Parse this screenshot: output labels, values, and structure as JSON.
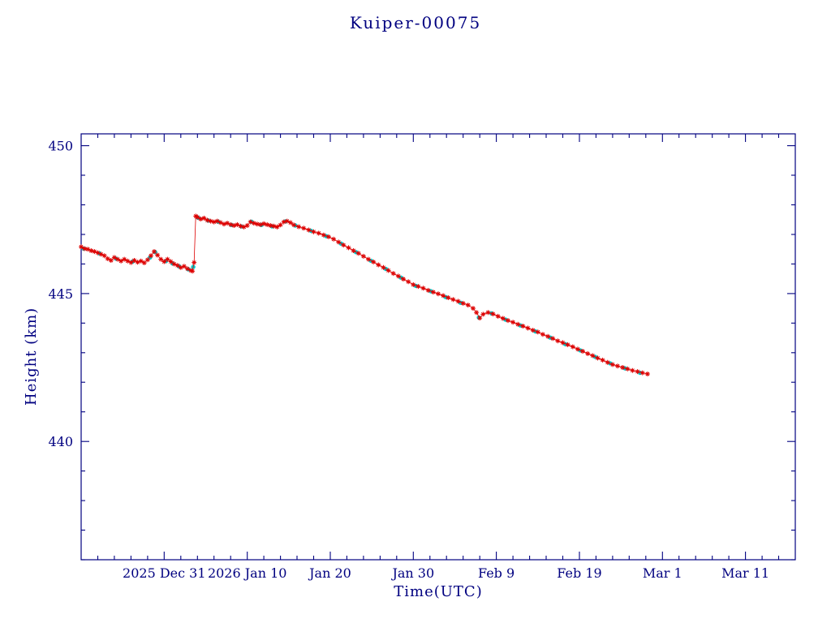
{
  "chart": {
    "title": "Kuiper-00075",
    "xlabel": "Time(UTC)",
    "ylabel": "Height (km)",
    "colors": {
      "axis": "#000080",
      "text": "#000080",
      "red_series": "#dd0000",
      "cyan_series": "#00cccc",
      "background": "#ffffff"
    }
  },
  "chart_data": {
    "type": "line",
    "title": "Kuiper-00075",
    "xlabel": "Time(UTC)",
    "ylabel": "Height (km)",
    "x_unit": "days (x axis labeled by calendar date, ticks every 10 days)",
    "xlim": [
      0,
      86
    ],
    "ylim": [
      436.0,
      450.4
    ],
    "grid": false,
    "legend": "none",
    "x_ticks": [
      {
        "day": 10,
        "label": "2025 Dec 31"
      },
      {
        "day": 20,
        "label": "2026 Jan 10"
      },
      {
        "day": 30,
        "label": "Jan 20"
      },
      {
        "day": 40,
        "label": "Jan 30"
      },
      {
        "day": 50,
        "label": "Feb 9"
      },
      {
        "day": 60,
        "label": "Feb 19"
      },
      {
        "day": 70,
        "label": "Mar 1"
      },
      {
        "day": 80,
        "label": "Mar 11"
      }
    ],
    "y_ticks": [
      {
        "value": 450,
        "label": "450"
      },
      {
        "value": 445,
        "label": "445"
      },
      {
        "value": 440,
        "label": "440"
      }
    ],
    "x_minor_step": 2,
    "y_minor_step": 1,
    "series": [
      {
        "name": "height-cyan-dots",
        "marker": "dot",
        "color": "#00cccc",
        "line": false,
        "points": [
          [
            0.3,
            446.52
          ],
          [
            2.2,
            446.36
          ],
          [
            4.2,
            446.18
          ],
          [
            6.2,
            446.08
          ],
          [
            8.3,
            446.22
          ],
          [
            8.9,
            446.4
          ],
          [
            10.2,
            446.1
          ],
          [
            11.0,
            446.02
          ],
          [
            11.8,
            445.92
          ],
          [
            12.9,
            445.82
          ],
          [
            13.5,
            445.9
          ],
          [
            14.1,
            447.56
          ],
          [
            15.3,
            447.47
          ],
          [
            16.5,
            447.43
          ],
          [
            18.1,
            447.32
          ],
          [
            19.3,
            447.27
          ],
          [
            20.5,
            447.43
          ],
          [
            21.7,
            447.32
          ],
          [
            23.0,
            447.27
          ],
          [
            24.6,
            447.44
          ],
          [
            25.8,
            447.3
          ],
          [
            27.7,
            447.12
          ],
          [
            29.5,
            446.94
          ],
          [
            31.3,
            446.69
          ],
          [
            33.1,
            446.4
          ],
          [
            34.9,
            446.11
          ],
          [
            36.7,
            445.83
          ],
          [
            38.5,
            445.54
          ],
          [
            40.3,
            445.26
          ],
          [
            42.1,
            445.08
          ],
          [
            43.9,
            444.88
          ],
          [
            45.7,
            444.69
          ],
          [
            47.9,
            444.19
          ],
          [
            49.4,
            444.33
          ],
          [
            51.1,
            444.12
          ],
          [
            52.9,
            443.92
          ],
          [
            54.7,
            443.72
          ],
          [
            56.5,
            443.51
          ],
          [
            58.3,
            443.29
          ],
          [
            60.1,
            443.08
          ],
          [
            61.9,
            442.86
          ],
          [
            63.7,
            442.64
          ],
          [
            65.5,
            442.47
          ],
          [
            67.3,
            442.32
          ]
        ]
      },
      {
        "name": "height-red-asterisks",
        "marker": "asterisk",
        "color": "#dd0000",
        "line": true,
        "points": [
          [
            0.0,
            446.58
          ],
          [
            0.4,
            446.52
          ],
          [
            0.8,
            446.5
          ],
          [
            1.2,
            446.45
          ],
          [
            1.6,
            446.42
          ],
          [
            2.0,
            446.38
          ],
          [
            2.4,
            446.33
          ],
          [
            2.8,
            446.28
          ],
          [
            3.2,
            446.18
          ],
          [
            3.6,
            446.12
          ],
          [
            4.0,
            446.22
          ],
          [
            4.4,
            446.16
          ],
          [
            4.8,
            446.1
          ],
          [
            5.2,
            446.16
          ],
          [
            5.6,
            446.1
          ],
          [
            6.0,
            446.05
          ],
          [
            6.4,
            446.12
          ],
          [
            6.8,
            446.06
          ],
          [
            7.2,
            446.1
          ],
          [
            7.6,
            446.04
          ],
          [
            8.0,
            446.14
          ],
          [
            8.4,
            446.28
          ],
          [
            8.8,
            446.42
          ],
          [
            9.2,
            446.3
          ],
          [
            9.6,
            446.16
          ],
          [
            10.0,
            446.08
          ],
          [
            10.4,
            446.16
          ],
          [
            10.8,
            446.08
          ],
          [
            11.2,
            446.0
          ],
          [
            11.6,
            445.95
          ],
          [
            12.0,
            445.88
          ],
          [
            12.4,
            445.92
          ],
          [
            12.8,
            445.84
          ],
          [
            13.2,
            445.78
          ],
          [
            13.4,
            445.76
          ],
          [
            13.6,
            446.05
          ],
          [
            13.8,
            447.62
          ],
          [
            14.0,
            447.58
          ],
          [
            14.4,
            447.52
          ],
          [
            14.8,
            447.55
          ],
          [
            15.2,
            447.48
          ],
          [
            15.6,
            447.45
          ],
          [
            16.0,
            447.42
          ],
          [
            16.4,
            447.45
          ],
          [
            16.8,
            447.4
          ],
          [
            17.2,
            447.35
          ],
          [
            17.6,
            447.38
          ],
          [
            18.0,
            447.33
          ],
          [
            18.4,
            447.3
          ],
          [
            18.8,
            447.33
          ],
          [
            19.2,
            447.28
          ],
          [
            19.6,
            447.25
          ],
          [
            20.0,
            447.3
          ],
          [
            20.4,
            447.42
          ],
          [
            20.8,
            447.38
          ],
          [
            21.2,
            447.35
          ],
          [
            21.6,
            447.33
          ],
          [
            22.0,
            447.36
          ],
          [
            22.4,
            447.33
          ],
          [
            22.8,
            447.3
          ],
          [
            23.2,
            447.28
          ],
          [
            23.6,
            447.25
          ],
          [
            24.0,
            447.32
          ],
          [
            24.4,
            447.42
          ],
          [
            24.8,
            447.45
          ],
          [
            25.2,
            447.4
          ],
          [
            25.6,
            447.32
          ],
          [
            26.2,
            447.26
          ],
          [
            26.8,
            447.21
          ],
          [
            27.4,
            447.15
          ],
          [
            28.0,
            447.09
          ],
          [
            28.6,
            447.04
          ],
          [
            29.2,
            446.98
          ],
          [
            29.8,
            446.92
          ],
          [
            30.4,
            446.84
          ],
          [
            31.0,
            446.74
          ],
          [
            31.6,
            446.64
          ],
          [
            32.2,
            446.55
          ],
          [
            32.8,
            446.45
          ],
          [
            33.4,
            446.36
          ],
          [
            34.0,
            446.26
          ],
          [
            34.6,
            446.16
          ],
          [
            35.2,
            446.07
          ],
          [
            35.8,
            445.97
          ],
          [
            36.4,
            445.88
          ],
          [
            37.0,
            445.78
          ],
          [
            37.6,
            445.68
          ],
          [
            38.2,
            445.59
          ],
          [
            38.8,
            445.49
          ],
          [
            39.4,
            445.4
          ],
          [
            40.0,
            445.3
          ],
          [
            40.6,
            445.24
          ],
          [
            41.2,
            445.18
          ],
          [
            41.8,
            445.11
          ],
          [
            42.4,
            445.05
          ],
          [
            43.0,
            444.99
          ],
          [
            43.6,
            444.93
          ],
          [
            44.2,
            444.86
          ],
          [
            44.8,
            444.8
          ],
          [
            45.4,
            444.74
          ],
          [
            46.0,
            444.67
          ],
          [
            46.6,
            444.61
          ],
          [
            47.2,
            444.5
          ],
          [
            47.6,
            444.36
          ],
          [
            48.0,
            444.17
          ],
          [
            48.4,
            444.3
          ],
          [
            49.0,
            444.36
          ],
          [
            49.6,
            444.31
          ],
          [
            50.2,
            444.23
          ],
          [
            50.8,
            444.16
          ],
          [
            51.4,
            444.09
          ],
          [
            52.0,
            444.03
          ],
          [
            52.6,
            443.96
          ],
          [
            53.2,
            443.9
          ],
          [
            53.8,
            443.83
          ],
          [
            54.4,
            443.76
          ],
          [
            55.0,
            443.7
          ],
          [
            55.6,
            443.62
          ],
          [
            56.2,
            443.55
          ],
          [
            56.8,
            443.48
          ],
          [
            57.4,
            443.4
          ],
          [
            58.0,
            443.34
          ],
          [
            58.6,
            443.27
          ],
          [
            59.2,
            443.2
          ],
          [
            59.8,
            443.12
          ],
          [
            60.4,
            443.05
          ],
          [
            61.0,
            442.97
          ],
          [
            61.6,
            442.9
          ],
          [
            62.2,
            442.82
          ],
          [
            62.8,
            442.75
          ],
          [
            63.4,
            442.67
          ],
          [
            64.0,
            442.6
          ],
          [
            64.6,
            442.55
          ],
          [
            65.2,
            442.5
          ],
          [
            65.8,
            442.45
          ],
          [
            66.4,
            442.4
          ],
          [
            67.0,
            442.36
          ],
          [
            67.6,
            442.32
          ],
          [
            68.2,
            442.28
          ]
        ]
      }
    ]
  }
}
